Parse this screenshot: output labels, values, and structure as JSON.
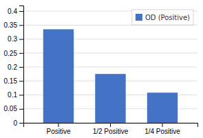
{
  "chart_data": {
    "type": "bar",
    "categories": [
      "Positive",
      "1/2 Positive",
      "1/4 Positive"
    ],
    "series": [
      {
        "name": "OD (Positive)",
        "color": "#4472C4",
        "values": [
          0.335,
          0.175,
          0.108
        ]
      }
    ],
    "ylim": [
      0,
      0.42
    ],
    "yticks": [
      0,
      0.05,
      0.1,
      0.15,
      0.2,
      0.25,
      0.3,
      0.35,
      0.4
    ],
    "grid": true,
    "legend": "upper right"
  }
}
